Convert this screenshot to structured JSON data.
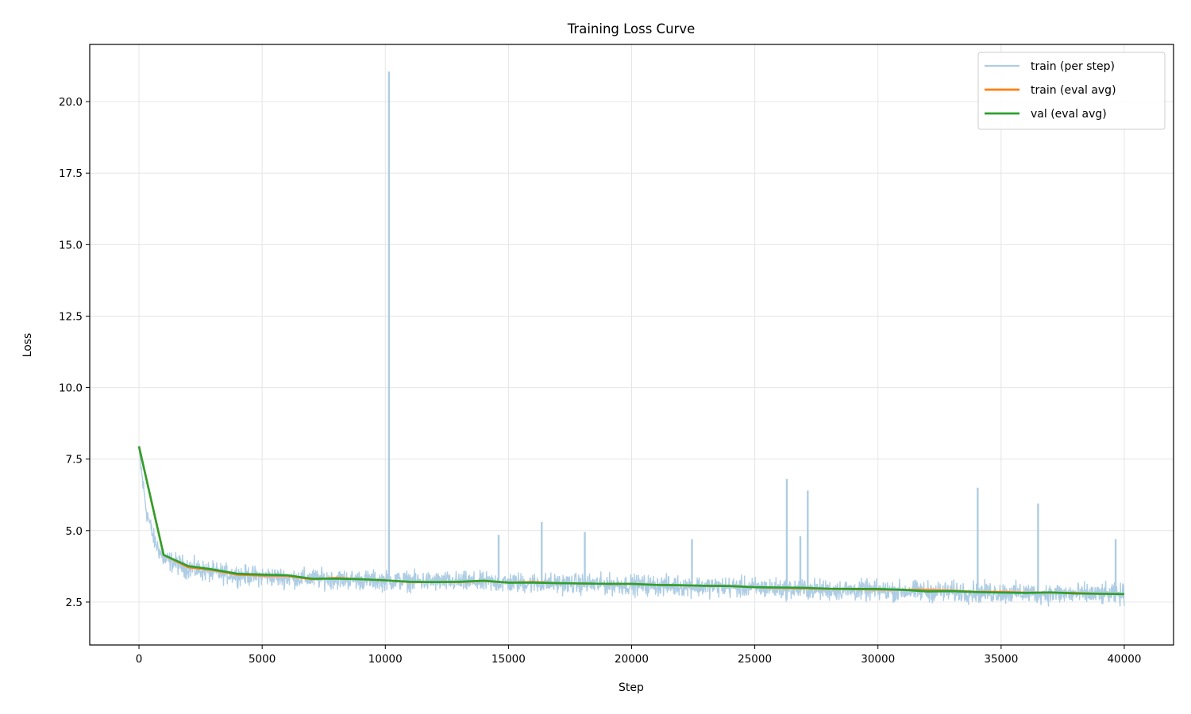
{
  "chart_data": {
    "type": "line",
    "title": "Training Loss Curve",
    "xlabel": "Step",
    "ylabel": "Loss",
    "xlim": [
      -2000,
      42000
    ],
    "ylim": [
      1.0,
      22.0
    ],
    "xticks": [
      0,
      5000,
      10000,
      15000,
      20000,
      25000,
      30000,
      35000,
      40000
    ],
    "yticks": [
      2.5,
      5.0,
      7.5,
      10.0,
      12.5,
      15.0,
      17.5,
      20.0
    ],
    "xtick_labels": [
      "0",
      "5000",
      "10000",
      "15000",
      "20000",
      "25000",
      "30000",
      "35000",
      "40000"
    ],
    "ytick_labels": [
      "2.5",
      "5.0",
      "7.5",
      "10.0",
      "12.5",
      "15.0",
      "17.5",
      "20.0"
    ],
    "grid": true,
    "legend_position": "top-right",
    "series": [
      {
        "name": "train (per step)",
        "color": "#aecde4",
        "envelope": {
          "x": [
            0,
            100,
            300,
            600,
            1000,
            2000,
            3000,
            4000,
            5000,
            6000,
            8000,
            10000,
            12000,
            14000,
            16000,
            18000,
            20000,
            22000,
            24000,
            26000,
            28000,
            30000,
            32000,
            34000,
            36000,
            38000,
            40000
          ],
          "low": [
            7.4,
            6.5,
            5.2,
            4.2,
            3.5,
            3.15,
            3.0,
            2.95,
            2.9,
            2.85,
            2.8,
            2.75,
            2.72,
            2.68,
            2.65,
            2.62,
            2.58,
            2.55,
            2.5,
            2.45,
            2.4,
            2.38,
            2.35,
            2.3,
            2.28,
            2.25,
            2.22
          ],
          "high": [
            8.2,
            7.6,
            6.2,
            5.2,
            4.5,
            4.25,
            4.05,
            3.95,
            3.9,
            3.85,
            3.8,
            3.75,
            3.72,
            3.7,
            3.68,
            3.65,
            3.62,
            3.58,
            3.55,
            3.5,
            3.45,
            3.42,
            3.4,
            3.38,
            3.35,
            3.32,
            3.3
          ]
        },
        "spikes": [
          {
            "x": 10150,
            "y": 21.05
          },
          {
            "x": 14600,
            "y": 4.85
          },
          {
            "x": 16350,
            "y": 5.3
          },
          {
            "x": 18100,
            "y": 4.95
          },
          {
            "x": 22450,
            "y": 4.7
          },
          {
            "x": 26300,
            "y": 6.8
          },
          {
            "x": 26850,
            "y": 4.8
          },
          {
            "x": 27150,
            "y": 6.4
          },
          {
            "x": 34050,
            "y": 6.5
          },
          {
            "x": 36500,
            "y": 5.95
          },
          {
            "x": 39650,
            "y": 4.7
          }
        ]
      },
      {
        "name": "train (eval avg)",
        "color": "#ff7f0e",
        "x": [
          0,
          1000,
          2000,
          3000,
          4000,
          5000,
          6000,
          7000,
          8000,
          9000,
          10000,
          11000,
          12000,
          13000,
          14000,
          15000,
          16000,
          17000,
          18000,
          19000,
          20000,
          21000,
          22000,
          23000,
          24000,
          25000,
          26000,
          27000,
          28000,
          29000,
          30000,
          31000,
          32000,
          33000,
          34000,
          35000,
          36000,
          37000,
          38000,
          39000,
          40000
        ],
        "y": [
          7.95,
          4.15,
          3.72,
          3.62,
          3.46,
          3.43,
          3.42,
          3.3,
          3.34,
          3.3,
          3.26,
          3.2,
          3.2,
          3.2,
          3.24,
          3.18,
          3.2,
          3.16,
          3.15,
          3.14,
          3.14,
          3.1,
          3.09,
          3.07,
          3.06,
          3.02,
          3.0,
          2.98,
          2.96,
          2.95,
          2.94,
          2.93,
          2.92,
          2.9,
          2.86,
          2.86,
          2.83,
          2.83,
          2.82,
          2.79,
          2.78
        ]
      },
      {
        "name": "val (eval avg)",
        "color": "#2ca02c",
        "x": [
          0,
          1000,
          2000,
          3000,
          4000,
          5000,
          6000,
          7000,
          8000,
          9000,
          10000,
          11000,
          12000,
          13000,
          14000,
          15000,
          16000,
          17000,
          18000,
          19000,
          20000,
          21000,
          22000,
          23000,
          24000,
          25000,
          26000,
          27000,
          28000,
          29000,
          30000,
          31000,
          32000,
          33000,
          34000,
          35000,
          36000,
          37000,
          38000,
          39000,
          40000
        ],
        "y": [
          7.95,
          4.15,
          3.76,
          3.64,
          3.49,
          3.46,
          3.44,
          3.32,
          3.32,
          3.3,
          3.26,
          3.21,
          3.2,
          3.21,
          3.25,
          3.18,
          3.18,
          3.16,
          3.15,
          3.14,
          3.14,
          3.1,
          3.09,
          3.07,
          3.06,
          3.02,
          3.01,
          3.0,
          2.97,
          2.96,
          2.96,
          2.93,
          2.87,
          2.88,
          2.85,
          2.83,
          2.82,
          2.84,
          2.8,
          2.79,
          2.78
        ]
      }
    ]
  }
}
